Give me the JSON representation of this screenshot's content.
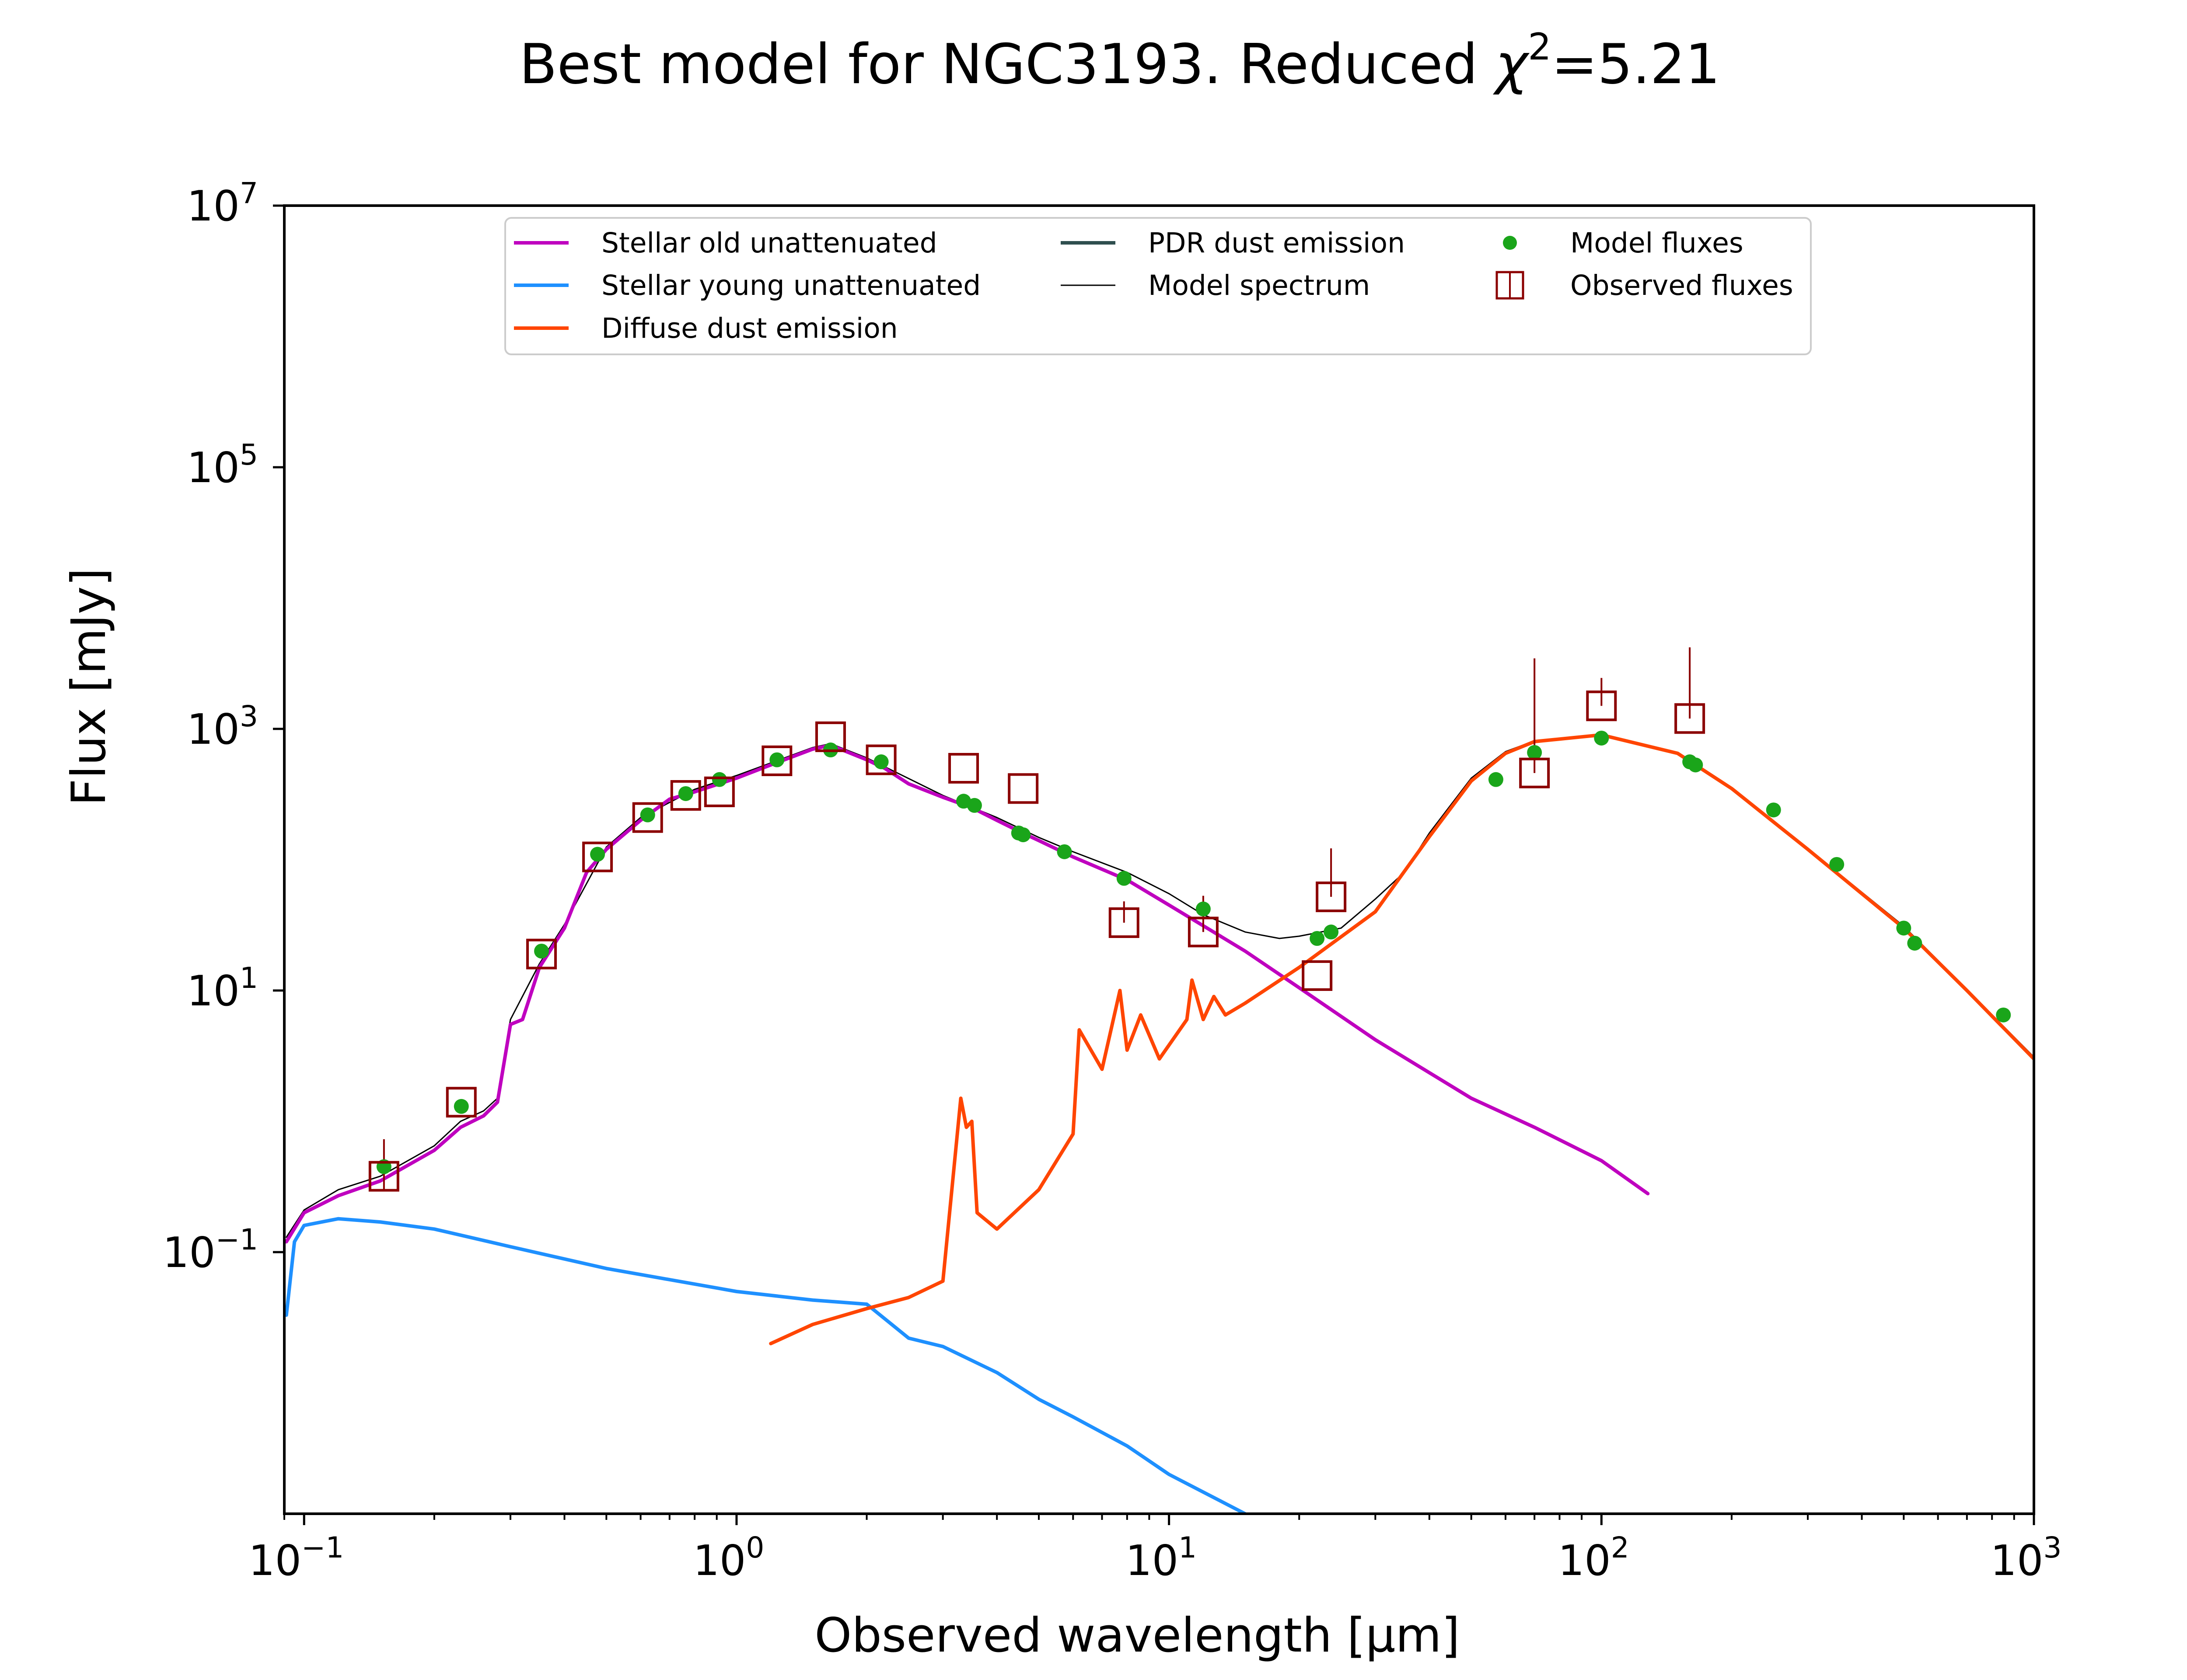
{
  "chart_data": {
    "type": "line",
    "title": "Best model for NGC3193. Reduced χ²=5.21",
    "title_parts": {
      "prefix": "Best model for NGC3193. Reduced ",
      "chi": "χ",
      "chi_exp": "2",
      "suffix": "=5.21"
    },
    "xlabel": "Observed wavelength [μm]",
    "ylabel": "Flux [mJy]",
    "xscale": "log",
    "yscale": "log",
    "xlim": [
      0.09,
      1000
    ],
    "ylim": [
      0.001,
      10000000
    ],
    "grid": false,
    "legend_position": "top-center",
    "x_ticks": [
      {
        "value": 0.1,
        "base": "10",
        "exp": "−1"
      },
      {
        "value": 1,
        "base": "10",
        "exp": "0"
      },
      {
        "value": 10,
        "base": "10",
        "exp": "1"
      },
      {
        "value": 100,
        "base": "10",
        "exp": "2"
      },
      {
        "value": 1000,
        "base": "10",
        "exp": "3"
      }
    ],
    "y_ticks": [
      {
        "value": 0.1,
        "base": "10",
        "exp": "−1"
      },
      {
        "value": 10,
        "base": "10",
        "exp": "1"
      },
      {
        "value": 1000,
        "base": "10",
        "exp": "3"
      },
      {
        "value": 100000,
        "base": "10",
        "exp": "5"
      },
      {
        "value": 10000000,
        "base": "10",
        "exp": "7"
      }
    ],
    "legend": [
      {
        "label": "Stellar old unattenuated",
        "kind": "line",
        "color": "#bf00bf"
      },
      {
        "label": "Stellar young unattenuated",
        "kind": "line",
        "color": "#1e90ff"
      },
      {
        "label": "Diffuse dust emission",
        "kind": "line",
        "color": "#ff4500"
      },
      {
        "label": "PDR dust emission",
        "kind": "line",
        "color": "#2f4f4f"
      },
      {
        "label": "Model spectrum",
        "kind": "thinline",
        "color": "#000000"
      },
      {
        "label": "Model fluxes",
        "kind": "dot",
        "color": "#1aa51a"
      },
      {
        "label": "Observed fluxes",
        "kind": "square",
        "color": "#8b0000"
      }
    ],
    "series": [
      {
        "name": "Stellar old unattenuated",
        "color": "#bf00bf",
        "x": [
          0.091,
          0.1,
          0.12,
          0.15,
          0.2,
          0.23,
          0.26,
          0.28,
          0.3,
          0.32,
          0.35,
          0.4,
          0.45,
          0.5,
          0.6,
          0.7,
          0.8,
          1.0,
          1.2,
          1.5,
          1.65,
          2.0,
          2.2,
          2.5,
          3.0,
          3.5,
          4.0,
          4.5,
          5.0,
          6.0,
          8.0,
          10.0,
          15.0,
          20.0,
          30.0,
          50.0,
          70.0,
          100.0,
          128.0
        ],
        "y": [
          0.12,
          0.2,
          0.27,
          0.35,
          0.6,
          0.9,
          1.1,
          1.4,
          5.5,
          6.0,
          15,
          30,
          80,
          120,
          200,
          290,
          330,
          420,
          530,
          700,
          750,
          580,
          500,
          380,
          300,
          250,
          200,
          165,
          140,
          105,
          70,
          45,
          20,
          10.5,
          4.2,
          1.5,
          0.9,
          0.5,
          0.28
        ]
      },
      {
        "name": "Stellar young unattenuated",
        "color": "#1e90ff",
        "x": [
          0.091,
          0.095,
          0.1,
          0.12,
          0.15,
          0.2,
          0.3,
          0.5,
          1.0,
          1.5,
          2.0,
          2.5,
          3.0,
          4.0,
          5.0,
          6.0,
          8.0,
          10.0,
          15.0
        ],
        "y": [
          0.033,
          0.12,
          0.16,
          0.18,
          0.17,
          0.15,
          0.11,
          0.075,
          0.05,
          0.043,
          0.04,
          0.022,
          0.019,
          0.012,
          0.0075,
          0.0055,
          0.0033,
          0.002,
          0.001
        ]
      },
      {
        "name": "Diffuse dust emission",
        "color": "#ff4500",
        "x": [
          1.2,
          1.5,
          2.0,
          2.5,
          3.0,
          3.3,
          3.4,
          3.5,
          3.6,
          4.0,
          5.0,
          6.0,
          6.2,
          7.0,
          7.7,
          8.0,
          8.6,
          9.5,
          11.0,
          11.3,
          12.0,
          12.7,
          13.5,
          15.0,
          20.0,
          30.0,
          40.0,
          50.0,
          60.0,
          70.0,
          100.0,
          150.0,
          200.0,
          300.0,
          500.0,
          700.0,
          1000.0
        ],
        "y": [
          0.02,
          0.028,
          0.037,
          0.045,
          0.06,
          1.5,
          0.9,
          1.0,
          0.2,
          0.15,
          0.3,
          0.8,
          5.0,
          2.5,
          10.0,
          3.5,
          6.5,
          3.0,
          6.0,
          12.0,
          6.0,
          9.0,
          6.5,
          8.0,
          15.0,
          40.0,
          150.0,
          400.0,
          650.0,
          800.0,
          900.0,
          650.0,
          350.0,
          120.0,
          30.0,
          10.0,
          3.0
        ]
      },
      {
        "name": "Model spectrum",
        "color": "#000000",
        "x": [
          0.091,
          0.1,
          0.12,
          0.15,
          0.2,
          0.23,
          0.26,
          0.28,
          0.3,
          0.35,
          0.4,
          0.5,
          0.6,
          0.8,
          1.0,
          1.5,
          1.65,
          2.0,
          3.0,
          4.0,
          5.0,
          6.0,
          8.0,
          10.0,
          12.0,
          15.0,
          18.0,
          20.0,
          25.0,
          30.0,
          35.0,
          40.0,
          50.0,
          60.0,
          70.0,
          100.0,
          150.0,
          200.0,
          300.0,
          500.0,
          700.0,
          1000.0
        ],
        "y": [
          0.13,
          0.21,
          0.3,
          0.38,
          0.65,
          1.0,
          1.2,
          1.5,
          6.0,
          16,
          32,
          125,
          210,
          345,
          440,
          720,
          770,
          600,
          310,
          210,
          148,
          115,
          80,
          55,
          38,
          28,
          25,
          26,
          30,
          50,
          80,
          160,
          420,
          670,
          810,
          910,
          660,
          355,
          122,
          31,
          10.2,
          3.1
        ]
      },
      {
        "name": "Model fluxes",
        "color": "#1aa51a",
        "x": [
          0.153,
          0.231,
          0.354,
          0.477,
          0.623,
          0.763,
          0.913,
          1.24,
          1.65,
          2.16,
          3.35,
          3.55,
          4.49,
          4.6,
          5.73,
          7.87,
          12.0,
          22.0,
          23.7,
          57.0,
          70.0,
          100.0,
          160.0,
          165.0,
          250.0,
          350.0,
          500.0,
          530.0,
          850.0
        ],
        "y": [
          0.45,
          1.3,
          20,
          110,
          220,
          320,
          410,
          580,
          690,
          560,
          280,
          260,
          160,
          155,
          115,
          72,
          42,
          25,
          28,
          410,
          660,
          850,
          560,
          530,
          240,
          92,
          30,
          23,
          6.5
        ]
      },
      {
        "name": "Observed fluxes",
        "color": "#8b0000",
        "x": [
          0.153,
          0.231,
          0.354,
          0.477,
          0.623,
          0.763,
          0.913,
          1.24,
          1.65,
          2.16,
          3.35,
          4.6,
          7.87,
          12.0,
          22.0,
          23.7,
          70.0,
          100.0,
          160.0
        ],
        "y": [
          0.38,
          1.4,
          19,
          105,
          210,
          310,
          330,
          570,
          870,
          580,
          500,
          350,
          33,
          28,
          13,
          52,
          460,
          1500,
          1200
        ],
        "yerr_low": [
          0.08,
          0,
          0,
          0,
          0,
          0,
          0,
          0,
          0,
          0,
          0,
          0,
          0,
          0,
          0,
          0,
          0,
          0,
          0
        ],
        "yerr_high": [
          0.35,
          0,
          0,
          0,
          0,
          0,
          0,
          0,
          0,
          0,
          0,
          0,
          15,
          25,
          0,
          70,
          3000,
          950,
          3000
        ]
      }
    ]
  }
}
